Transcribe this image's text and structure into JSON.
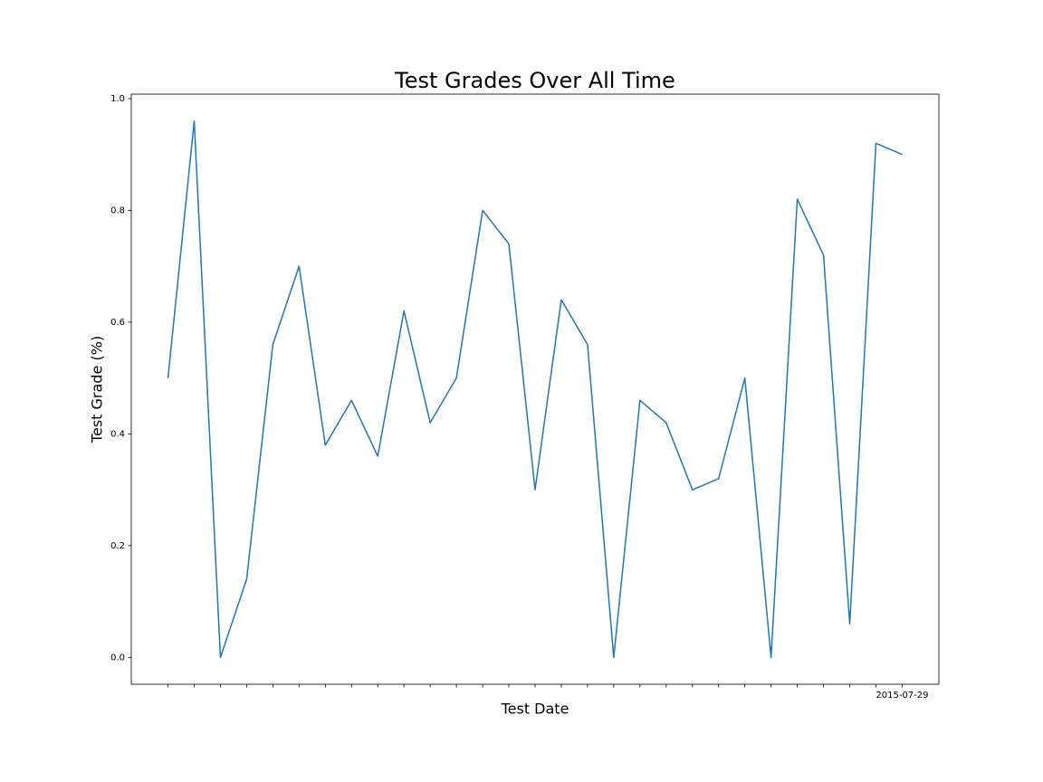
{
  "chart_data": {
    "type": "line",
    "title": "Test Grades Over All Time",
    "x_label": "Test Date",
    "y_label": "Test Grade (%)",
    "categories": [
      null,
      null,
      null,
      null,
      null,
      null,
      null,
      null,
      null,
      null,
      null,
      null,
      null,
      null,
      null,
      null,
      null,
      null,
      null,
      null,
      null,
      null,
      null,
      null,
      null,
      null,
      null,
      null,
      "2015-07-29"
    ],
    "series": [
      {
        "name": "Test Grade",
        "color": "#1f77b4",
        "values": [
          0.5,
          0.96,
          0,
          0.14,
          0.56,
          0.7,
          0.38,
          0.46,
          0.36,
          0.62,
          0.42,
          0.5,
          0.8,
          0.74,
          0.3,
          0.64,
          0.56,
          0,
          0.46,
          0.42,
          0.3,
          0.32,
          0.5,
          0,
          0.82,
          0.72,
          0.06,
          0.92,
          0.9
        ]
      }
    ],
    "ylim": [
      -0.048,
      1.008
    ],
    "yticks": [
      {
        "value": 0,
        "label": "0.0"
      },
      {
        "value": 0.2,
        "label": "0.2"
      },
      {
        "value": 0.4,
        "label": "0.4"
      },
      {
        "value": 0.6,
        "label": "0.6"
      },
      {
        "value": 0.8,
        "label": "0.8"
      },
      {
        "value": 1,
        "label": "1.0"
      }
    ],
    "grid": false
  }
}
